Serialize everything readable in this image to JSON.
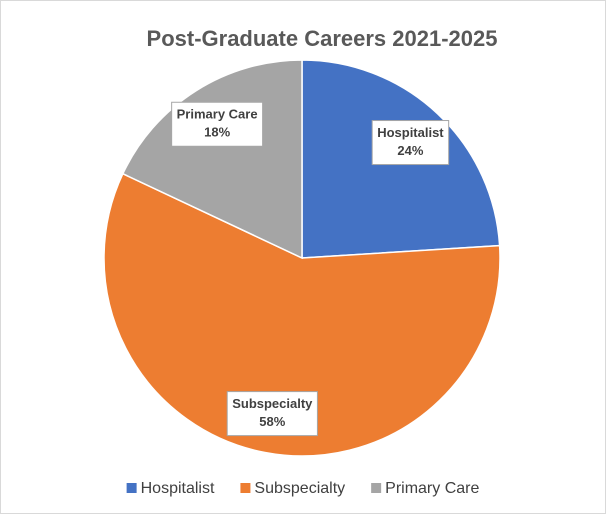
{
  "chart_data": {
    "type": "pie",
    "title": "Post-Graduate Careers 2021-2025",
    "categories": [
      "Hospitalist",
      "Subspecialty",
      "Primary Care"
    ],
    "values": [
      24,
      58,
      18
    ],
    "value_labels": [
      "24%",
      "58%",
      "18%"
    ],
    "colors": [
      "#4472c4",
      "#ed7d31",
      "#a5a5a5"
    ],
    "legend": "bottom"
  }
}
